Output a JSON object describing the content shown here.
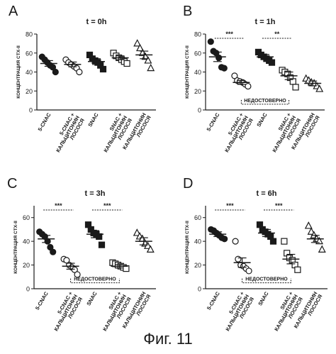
{
  "figure": {
    "caption": "Фиг. 11",
    "common": {
      "ylabel": "КОНЦЕНТРАЦИЯ CTX-II",
      "categories": [
        "5-CNAC",
        "5-CNAC + КАЛЬЦИТОНИН ЛОСОСЯ",
        "SNAC",
        "SNAC + КАЛЬЦИТОНИН ЛОСОСЯ",
        "КАЛЬЦИТОНИН ЛОСОСЯ"
      ],
      "ns_label": "НЕДОСТОВЕРНО"
    }
  },
  "chart_data": [
    {
      "panel": "A",
      "title": "t = 0h",
      "type": "scatter",
      "ylim": [
        0,
        80
      ],
      "yticks": [
        0,
        20,
        40,
        60,
        80
      ],
      "series": [
        {
          "marker": "circle-filled",
          "values": [
            56,
            53,
            50,
            47,
            45,
            40
          ],
          "mean": 49,
          "sem": 3
        },
        {
          "marker": "circle-open",
          "values": [
            53,
            50,
            48,
            46,
            44,
            40
          ],
          "mean": 48,
          "sem": 2.5
        },
        {
          "marker": "square-filled",
          "values": [
            58,
            54,
            52,
            50,
            47,
            43
          ],
          "mean": 51,
          "sem": 3
        },
        {
          "marker": "square-open",
          "values": [
            60,
            57,
            55,
            53,
            51,
            49
          ],
          "mean": 55,
          "sem": 2
        },
        {
          "marker": "triangle-open",
          "values": [
            70,
            65,
            60,
            56,
            52,
            44
          ],
          "mean": 58,
          "sem": 4
        }
      ],
      "significance": []
    },
    {
      "panel": "B",
      "title": "t = 1h",
      "type": "scatter",
      "ylim": [
        0,
        80
      ],
      "yticks": [
        0,
        20,
        40,
        60,
        80
      ],
      "series": [
        {
          "marker": "circle-filled",
          "values": [
            72,
            62,
            60,
            55,
            45,
            44
          ],
          "mean": 56,
          "sem": 5
        },
        {
          "marker": "circle-open",
          "values": [
            36,
            31,
            30,
            29,
            27,
            25
          ],
          "mean": 29,
          "sem": 2
        },
        {
          "marker": "square-filled",
          "values": [
            61,
            58,
            56,
            54,
            52,
            50
          ],
          "mean": 56,
          "sem": 2.5
        },
        {
          "marker": "square-open",
          "values": [
            42,
            40,
            38,
            34,
            30,
            24
          ],
          "mean": 36,
          "sem": 4
        },
        {
          "marker": "triangle-open",
          "values": [
            33,
            31,
            29,
            28,
            25,
            22
          ],
          "mean": 28,
          "sem": 2.5
        }
      ],
      "significance": [
        {
          "from": 0,
          "to": 1,
          "label": "***"
        },
        {
          "from": 2,
          "to": 3,
          "label": "**"
        }
      ],
      "ns_bracket": [
        1,
        3
      ]
    },
    {
      "panel": "C",
      "title": "t = 3h",
      "type": "scatter",
      "ylim": [
        0,
        70
      ],
      "yticks": [
        0,
        20,
        40,
        60
      ],
      "series": [
        {
          "marker": "circle-filled",
          "values": [
            48,
            46,
            44,
            40,
            35,
            31
          ],
          "mean": 42,
          "sem": 3
        },
        {
          "marker": "circle-open",
          "values": [
            25,
            24,
            20,
            18,
            16,
            12
          ],
          "mean": 19,
          "sem": 2.5
        },
        {
          "marker": "square-filled",
          "values": [
            54,
            50,
            47,
            46,
            44,
            37
          ],
          "mean": 46,
          "sem": 3
        },
        {
          "marker": "square-open",
          "values": [
            22,
            21,
            20,
            19,
            18,
            17
          ],
          "mean": 19,
          "sem": 1.5
        },
        {
          "marker": "triangle-open",
          "values": [
            47,
            44,
            42,
            38,
            36,
            33
          ],
          "mean": 40,
          "sem": 3
        }
      ],
      "significance": [
        {
          "from": 0,
          "to": 1,
          "label": "***"
        },
        {
          "from": 2,
          "to": 3,
          "label": "***"
        }
      ],
      "ns_bracket": [
        1,
        3
      ]
    },
    {
      "panel": "D",
      "title": "t = 6h",
      "type": "scatter",
      "ylim": [
        0,
        70
      ],
      "yticks": [
        0,
        20,
        40,
        60
      ],
      "series": [
        {
          "marker": "circle-filled",
          "values": [
            50,
            49,
            47,
            45,
            43,
            42
          ],
          "mean": 46,
          "sem": 2
        },
        {
          "marker": "circle-open",
          "values": [
            40,
            25,
            20,
            19,
            17,
            15
          ],
          "mean": 22,
          "sem": 4
        },
        {
          "marker": "square-filled",
          "values": [
            54,
            50,
            48,
            46,
            44,
            40
          ],
          "mean": 47,
          "sem": 3
        },
        {
          "marker": "square-open",
          "values": [
            40,
            30,
            26,
            24,
            20,
            16
          ],
          "mean": 25,
          "sem": 4
        },
        {
          "marker": "triangle-open",
          "values": [
            53,
            48,
            45,
            42,
            40,
            33
          ],
          "mean": 42,
          "sem": 3
        }
      ],
      "significance": [
        {
          "from": 0,
          "to": 1,
          "label": "***"
        },
        {
          "from": 2,
          "to": 3,
          "label": "***"
        }
      ],
      "ns_bracket": [
        1,
        3
      ]
    }
  ]
}
